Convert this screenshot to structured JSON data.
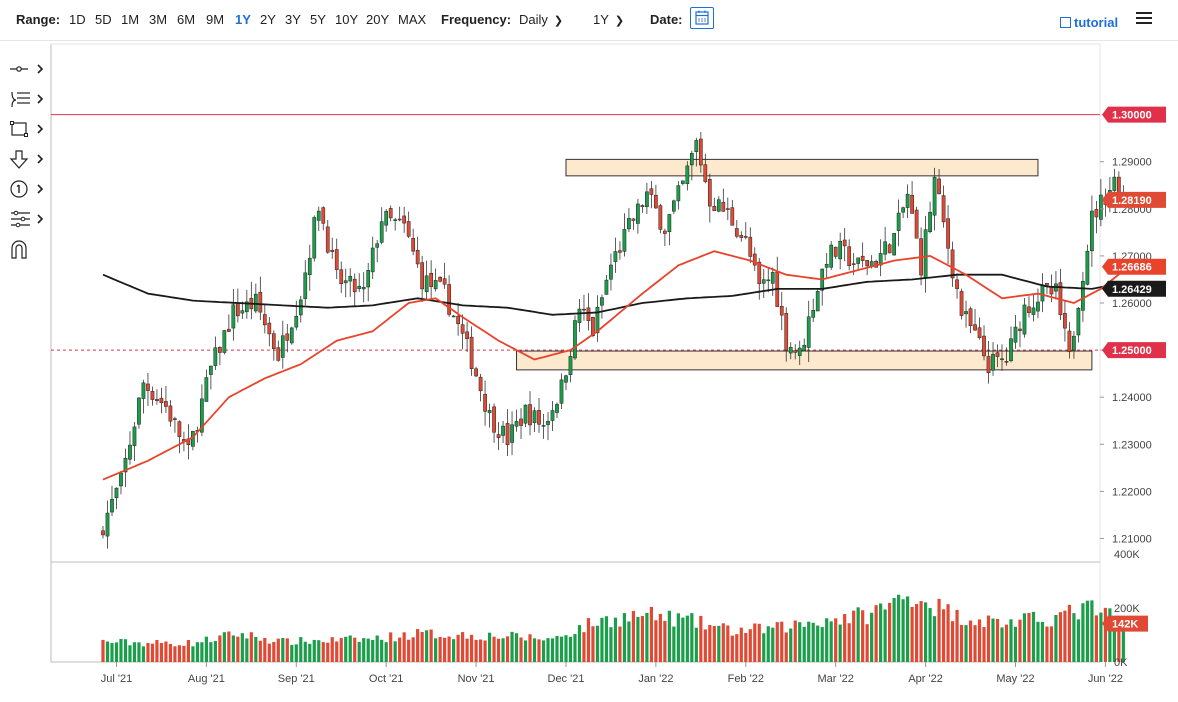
{
  "toolbar": {
    "range_label": "Range:",
    "ranges": [
      "1D",
      "5D",
      "1M",
      "3M",
      "6M",
      "9M",
      "1Y",
      "2Y",
      "3Y",
      "5Y",
      "10Y",
      "20Y",
      "MAX"
    ],
    "active_range": "1Y",
    "frequency_label": "Frequency:",
    "frequency_value": "Daily",
    "period_value": "1Y",
    "date_label": "Date:",
    "tutorial_label": "tutorial"
  },
  "icons": {
    "tools": [
      "crosshair-line-icon",
      "fibonacci-icon",
      "rectangle-icon",
      "arrow-down-icon",
      "number-marker-icon",
      "levels-icon",
      "magnet-icon"
    ],
    "calendar": "calendar-icon",
    "menu": "hamburger-menu-icon"
  },
  "colors": {
    "up": "#1a9e4a",
    "down": "#e04a34",
    "ma_short": "#e8432b",
    "ma_long": "#1a1a1a",
    "resistance_line": "#e0304a",
    "support_line": "#d0304a",
    "zone_fill": "#fbe5c5",
    "accent": "#1e6fd9"
  },
  "chart_data": {
    "type": "candlestick",
    "price_axis": {
      "ylim": [
        1.205,
        1.315
      ],
      "ticks": [
        "1.21000",
        "1.22000",
        "1.23000",
        "1.24000",
        "1.25000",
        "1.26000",
        "1.27000",
        "1.28000",
        "1.29000"
      ]
    },
    "volume_axis": {
      "ylim": [
        0,
        400000
      ],
      "tick_labels": [
        "0K",
        "200K",
        "400K"
      ]
    },
    "x_ticks": [
      "Jul '21",
      "Aug '21",
      "Sep '21",
      "Oct '21",
      "Nov '21",
      "Dec '21",
      "Jan '22",
      "Feb '22",
      "Mar '22",
      "Apr '22",
      "May '22",
      "Jun '22"
    ],
    "price_labels": [
      {
        "text": "1.30000",
        "value": 1.3,
        "color": "#e0304a"
      },
      {
        "text": "1.28190",
        "value": 1.2819,
        "color": "#e04a34"
      },
      {
        "text": "1.26686",
        "value": 1.26686,
        "color": "#e8432b"
      },
      {
        "text": "1.26429",
        "value": 1.26429,
        "color": "#1a1a1a"
      },
      {
        "text": "1.25000",
        "value": 1.25,
        "color": "#e0304a"
      }
    ],
    "volume_label": {
      "text": "142K",
      "value": 142000
    },
    "horizontal_lines": [
      {
        "value": 1.3,
        "style": "solid"
      },
      {
        "value": 1.25,
        "style": "dashed"
      }
    ],
    "zones": [
      {
        "from_month": 5.15,
        "to_month": 10.4,
        "low": 1.287,
        "high": 1.2905
      },
      {
        "from_month": 4.6,
        "to_month": 11.0,
        "low": 1.2458,
        "high": 1.2498
      }
    ],
    "close_path": [
      [
        0.0,
        1.213
      ],
      [
        0.2,
        1.222
      ],
      [
        0.45,
        1.243
      ],
      [
        0.7,
        1.238
      ],
      [
        0.95,
        1.228
      ],
      [
        1.2,
        1.246
      ],
      [
        1.45,
        1.258
      ],
      [
        1.7,
        1.26
      ],
      [
        1.95,
        1.249
      ],
      [
        2.2,
        1.262
      ],
      [
        2.4,
        1.281
      ],
      [
        2.6,
        1.265
      ],
      [
        2.9,
        1.262
      ],
      [
        3.1,
        1.278
      ],
      [
        3.35,
        1.276
      ],
      [
        3.55,
        1.265
      ],
      [
        3.8,
        1.262
      ],
      [
        4.1,
        1.248
      ],
      [
        4.3,
        1.236
      ],
      [
        4.5,
        1.231
      ],
      [
        4.7,
        1.237
      ],
      [
        4.9,
        1.234
      ],
      [
        5.1,
        1.242
      ],
      [
        5.3,
        1.259
      ],
      [
        5.45,
        1.254
      ],
      [
        5.65,
        1.268
      ],
      [
        5.85,
        1.276
      ],
      [
        6.05,
        1.283
      ],
      [
        6.25,
        1.276
      ],
      [
        6.45,
        1.285
      ],
      [
        6.6,
        1.294
      ],
      [
        6.75,
        1.282
      ],
      [
        6.95,
        1.279
      ],
      [
        7.15,
        1.273
      ],
      [
        7.3,
        1.263
      ],
      [
        7.45,
        1.266
      ],
      [
        7.6,
        1.252
      ],
      [
        7.75,
        1.249
      ],
      [
        7.9,
        1.26
      ],
      [
        8.05,
        1.27
      ],
      [
        8.2,
        1.271
      ],
      [
        8.4,
        1.268
      ],
      [
        8.6,
        1.269
      ],
      [
        8.8,
        1.274
      ],
      [
        8.95,
        1.283
      ],
      [
        9.1,
        1.268
      ],
      [
        9.25,
        1.286
      ],
      [
        9.4,
        1.272
      ],
      [
        9.55,
        1.258
      ],
      [
        9.7,
        1.253
      ],
      [
        9.85,
        1.247
      ],
      [
        10.05,
        1.248
      ],
      [
        10.25,
        1.259
      ],
      [
        10.45,
        1.262
      ],
      [
        10.6,
        1.262
      ],
      [
        10.75,
        1.248
      ],
      [
        10.85,
        1.261
      ],
      [
        11.0,
        1.278
      ],
      [
        11.15,
        1.283
      ],
      [
        11.25,
        1.286
      ],
      [
        11.35,
        1.2819
      ]
    ],
    "ma_short_path": [
      [
        0.0,
        1.2225
      ],
      [
        0.5,
        1.2265
      ],
      [
        1.0,
        1.2315
      ],
      [
        1.4,
        1.24
      ],
      [
        1.8,
        1.244
      ],
      [
        2.2,
        1.247
      ],
      [
        2.6,
        1.252
      ],
      [
        3.0,
        1.254
      ],
      [
        3.4,
        1.26
      ],
      [
        3.7,
        1.261
      ],
      [
        4.0,
        1.257
      ],
      [
        4.4,
        1.252
      ],
      [
        4.8,
        1.248
      ],
      [
        5.2,
        1.25
      ],
      [
        5.5,
        1.254
      ],
      [
        6.0,
        1.262
      ],
      [
        6.4,
        1.268
      ],
      [
        6.8,
        1.271
      ],
      [
        7.2,
        1.269
      ],
      [
        7.6,
        1.266
      ],
      [
        8.0,
        1.265
      ],
      [
        8.4,
        1.267
      ],
      [
        8.8,
        1.269
      ],
      [
        9.2,
        1.27
      ],
      [
        9.6,
        1.266
      ],
      [
        10.0,
        1.261
      ],
      [
        10.4,
        1.262
      ],
      [
        10.8,
        1.26
      ],
      [
        11.1,
        1.263
      ],
      [
        11.35,
        1.26686
      ]
    ],
    "ma_long_path": [
      [
        0.0,
        1.266
      ],
      [
        0.5,
        1.262
      ],
      [
        1.0,
        1.2605
      ],
      [
        1.5,
        1.26
      ],
      [
        2.0,
        1.2595
      ],
      [
        2.5,
        1.259
      ],
      [
        3.0,
        1.2595
      ],
      [
        3.5,
        1.261
      ],
      [
        4.0,
        1.2595
      ],
      [
        4.5,
        1.259
      ],
      [
        5.0,
        1.2575
      ],
      [
        5.5,
        1.258
      ],
      [
        6.0,
        1.26
      ],
      [
        6.5,
        1.261
      ],
      [
        7.0,
        1.2615
      ],
      [
        7.5,
        1.263
      ],
      [
        8.0,
        1.263
      ],
      [
        8.5,
        1.2645
      ],
      [
        9.0,
        1.265
      ],
      [
        9.5,
        1.266
      ],
      [
        10.0,
        1.266
      ],
      [
        10.5,
        1.2635
      ],
      [
        11.0,
        1.263
      ],
      [
        11.35,
        1.26429
      ]
    ],
    "volume_path": [
      [
        0.0,
        75000
      ],
      [
        0.5,
        70000
      ],
      [
        1.0,
        70000
      ],
      [
        1.5,
        105000
      ],
      [
        2.0,
        75000
      ],
      [
        2.5,
        80000
      ],
      [
        3.0,
        85000
      ],
      [
        3.5,
        105000
      ],
      [
        4.0,
        100000
      ],
      [
        4.5,
        95000
      ],
      [
        5.0,
        85000
      ],
      [
        5.5,
        150000
      ],
      [
        6.0,
        175000
      ],
      [
        6.5,
        155000
      ],
      [
        7.0,
        115000
      ],
      [
        7.5,
        125000
      ],
      [
        8.0,
        155000
      ],
      [
        8.5,
        175000
      ],
      [
        9.0,
        250000
      ],
      [
        9.5,
        170000
      ],
      [
        10.0,
        145000
      ],
      [
        10.5,
        160000
      ],
      [
        11.0,
        200000
      ],
      [
        11.35,
        142000
      ]
    ]
  }
}
